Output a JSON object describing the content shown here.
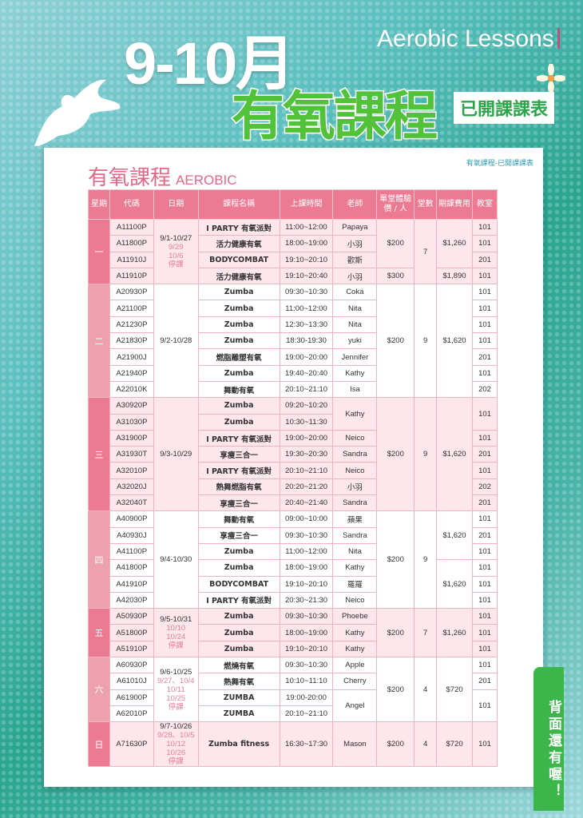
{
  "header": {
    "months": "9-10月",
    "english": "Aerobic Lessons",
    "title": "有氧課程",
    "badge": "已開課課表"
  },
  "card": {
    "breadcrumb": "有氧課程-已開課課表",
    "section_title": "有氧課程",
    "section_title_en": "AEROBIC"
  },
  "back_tab": "背面還有喔！",
  "colors": {
    "header_pink": "#ec7a92",
    "day_pink": "#ec7a92",
    "day_pink_light": "#eda0ad",
    "green": "#3cb54a",
    "teal": "#2aa590",
    "note_pink": "#e8809a"
  },
  "table": {
    "columns": [
      "星期",
      "代碼",
      "日期",
      "課程名稱",
      "上課時間",
      "老師",
      "單堂體驗價 / 人",
      "堂數",
      "期課費用",
      "教室"
    ],
    "groups": [
      {
        "day": "一",
        "date": "9/1-10/27",
        "notes": [
          "9/29",
          "10/6",
          "停課"
        ],
        "rows": [
          [
            "A11100P",
            "I PARTY 有氧派對",
            "11:00~12:00",
            "Papaya",
            "$200",
            "7",
            "$1,260",
            "101"
          ],
          [
            "A11800P",
            "活力健康有氧",
            "18:00~19:00",
            "小羽",
            null,
            null,
            null,
            "101"
          ],
          [
            "A11910J",
            "BODYCOMBAT",
            "19:10~20:10",
            "歡斯",
            null,
            null,
            null,
            "201"
          ],
          [
            "A11910P",
            "活力健康有氧",
            "19:10~20:40",
            "小羽",
            "$300",
            null,
            "$1,890",
            "101"
          ]
        ]
      },
      {
        "day": "二",
        "date": "9/2-10/28",
        "notes": [],
        "rows": [
          [
            "A20930P",
            "Zumba",
            "09:30~10:30",
            "Coka",
            "$200",
            "9",
            "$1,620",
            "101"
          ],
          [
            "A21100P",
            "Zumba",
            "11:00~12:00",
            "Nita",
            null,
            null,
            null,
            "101"
          ],
          [
            "A21230P",
            "Zumba",
            "12:30~13:30",
            "Nita",
            null,
            null,
            null,
            "101"
          ],
          [
            "A21830P",
            "Zumba",
            "18:30-19:30",
            "yuki",
            null,
            null,
            null,
            "101"
          ],
          [
            "A21900J",
            "燃脂雕塑有氧",
            "19:00~20:00",
            "Jennifer",
            null,
            null,
            null,
            "201"
          ],
          [
            "A21940P",
            "Zumba",
            "19:40~20:40",
            "Kathy",
            null,
            null,
            null,
            "101"
          ],
          [
            "A22010K",
            "舞動有氧",
            "20:10~21:10",
            "Isa",
            null,
            null,
            null,
            "202"
          ]
        ]
      },
      {
        "day": "三",
        "date": "9/3-10/29",
        "notes": [],
        "rows": [
          [
            "A30920P",
            "Zumba",
            "09:20~10:20",
            "Kathy",
            "$200",
            "9",
            "$1,620",
            "101"
          ],
          [
            "A31030P",
            "Zumba",
            "10:30~11:30",
            null,
            null,
            null,
            null,
            null
          ],
          [
            "A31900P",
            "I PARTY 有氧派對",
            "19:00~20:00",
            "Neico",
            null,
            null,
            null,
            "101"
          ],
          [
            "A31930T",
            "享瘦三合一",
            "19:30~20:30",
            "Sandra",
            null,
            null,
            null,
            "201"
          ],
          [
            "A32010P",
            "I PARTY 有氧派對",
            "20:10~21:10",
            "Neico",
            null,
            null,
            null,
            "101"
          ],
          [
            "A32020J",
            "熱舞燃脂有氧",
            "20:20~21:20",
            "小羽",
            null,
            null,
            null,
            "202"
          ],
          [
            "A32040T",
            "享瘦三合一",
            "20:40~21:40",
            "Sandra",
            null,
            null,
            null,
            "201"
          ]
        ]
      },
      {
        "day": "四",
        "date": "9/4-10/30",
        "notes": [],
        "rows": [
          [
            "A40900P",
            "舞動有氧",
            "09:00~10:00",
            "蘋果",
            "$200",
            "9",
            "$1,620",
            "101"
          ],
          [
            "A40930J",
            "享瘦三合一",
            "09:30~10:30",
            "Sandra",
            null,
            null,
            null,
            "201"
          ],
          [
            "A41100P",
            "Zumba",
            "11:00~12:00",
            "Nita",
            null,
            null,
            null,
            "101"
          ],
          [
            "A41800P",
            "Zumba",
            "18:00~19:00",
            "Kathy",
            null,
            null,
            "$1,620",
            "101"
          ],
          [
            "A41910P",
            "BODYCOMBAT",
            "19:10~20:10",
            "羅羅",
            null,
            null,
            null,
            "101"
          ],
          [
            "A42030P",
            "I PARTY 有氧派對",
            "20:30~21:30",
            "Neico",
            null,
            null,
            null,
            "101"
          ]
        ]
      },
      {
        "day": "五",
        "date": "9/5-10/31",
        "notes": [
          "10/10",
          "10/24",
          "停課"
        ],
        "rows": [
          [
            "A50930P",
            "Zumba",
            "09:30~10:30",
            "Phoebe",
            "$200",
            "7",
            "$1,260",
            "101"
          ],
          [
            "A51800P",
            "Zumba",
            "18:00~19:00",
            "Kathy",
            null,
            null,
            null,
            "101"
          ],
          [
            "A51910P",
            "Zumba",
            "19:10~20:10",
            "Kathy",
            null,
            null,
            null,
            "101"
          ]
        ]
      },
      {
        "day": "六",
        "date": "9/6-10/25",
        "notes": [
          "9/27、10/4",
          "10/11",
          "10/25",
          "停課"
        ],
        "rows": [
          [
            "A60930P",
            "燃燒有氧",
            "09:30~10:30",
            "Apple",
            "$200",
            "4",
            "$720",
            "101"
          ],
          [
            "A61010J",
            "熱舞有氧",
            "10:10~11:10",
            "Cherry",
            null,
            null,
            null,
            "201"
          ],
          [
            "A61900P",
            "ZUMBA",
            "19:00-20:00",
            "Angel",
            null,
            null,
            null,
            "101"
          ],
          [
            "A62010P",
            "ZUMBA",
            "20:10~21:10",
            null,
            null,
            null,
            null,
            null
          ]
        ]
      },
      {
        "day": "日",
        "date": "9/7-10/26",
        "notes": [
          "9/28、10/5",
          "10/12",
          "10/26",
          "停課"
        ],
        "rows": [
          [
            "A71630P",
            "Zumba fitness",
            "16:30~17:30",
            "Mason",
            "$200",
            "4",
            "$720",
            "101"
          ]
        ]
      }
    ]
  }
}
